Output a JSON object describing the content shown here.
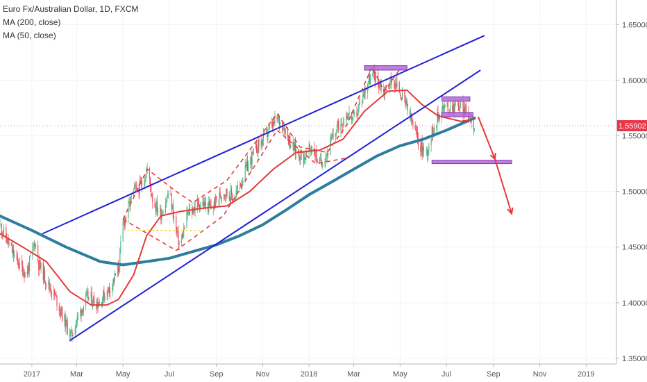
{
  "header": {
    "symbol_line": "Euro Fx/Australian Dollar, 1D, FXCM",
    "indicators": [
      "MA (200, close)",
      "MA (50, close)"
    ]
  },
  "colors": {
    "up": "#53b987",
    "down": "#eb4d5c",
    "ma200": "#2e7d9e",
    "ma50": "#e53935",
    "channel": "#1f1fd6",
    "zone_fill": "#b565d8",
    "zone_border": "#7b3fa8",
    "price_badge": "#e8374b",
    "dashed": "#e53935",
    "yellow": "#f5d742",
    "arrow": "#e53935"
  },
  "chart_data": {
    "type": "candlestick",
    "symbol": "EURAUD",
    "timeframe": "1D",
    "y_ticks": [
      "1.65000",
      "1.60000",
      "1.55000",
      "1.50000",
      "1.45000",
      "1.40000",
      "1.35000"
    ],
    "ylim": [
      1.345,
      1.672
    ],
    "x_ticks": [
      {
        "label": "2017",
        "date": "2017-01-01"
      },
      {
        "label": "Mar",
        "date": "2017-03-01"
      },
      {
        "label": "May",
        "date": "2017-05-01"
      },
      {
        "label": "Jul",
        "date": "2017-07-01"
      },
      {
        "label": "Sep",
        "date": "2017-09-01"
      },
      {
        "label": "Nov",
        "date": "2017-11-01"
      },
      {
        "label": "2018",
        "date": "2018-01-01"
      },
      {
        "label": "Mar",
        "date": "2018-03-01"
      },
      {
        "label": "May",
        "date": "2018-05-01"
      },
      {
        "label": "Jul",
        "date": "2018-07-01"
      },
      {
        "label": "Sep",
        "date": "2018-09-01"
      },
      {
        "label": "Nov",
        "date": "2018-11-01"
      },
      {
        "label": "2019",
        "date": "2019-01-01"
      }
    ],
    "xlim": [
      "2016-11-20",
      "2019-02-10"
    ],
    "last_price": 1.55902,
    "last_price_label": "1.55902",
    "price_path": [
      [
        "2016-11-20",
        1.47
      ],
      [
        "2016-12-10",
        1.44
      ],
      [
        "2016-12-25",
        1.425
      ],
      [
        "2017-01-05",
        1.455
      ],
      [
        "2017-01-10",
        1.435
      ],
      [
        "2017-01-20",
        1.42
      ],
      [
        "2017-02-01",
        1.405
      ],
      [
        "2017-02-15",
        1.38
      ],
      [
        "2017-02-22",
        1.37
      ],
      [
        "2017-03-01",
        1.385
      ],
      [
        "2017-03-15",
        1.405
      ],
      [
        "2017-03-30",
        1.4
      ],
      [
        "2017-04-15",
        1.415
      ],
      [
        "2017-04-25",
        1.43
      ],
      [
        "2017-05-01",
        1.47
      ],
      [
        "2017-05-15",
        1.5
      ],
      [
        "2017-05-25",
        1.505
      ],
      [
        "2017-06-02",
        1.52
      ],
      [
        "2017-06-10",
        1.49
      ],
      [
        "2017-06-20",
        1.48
      ],
      [
        "2017-07-01",
        1.5
      ],
      [
        "2017-07-10",
        1.465
      ],
      [
        "2017-07-15",
        1.45
      ],
      [
        "2017-07-25",
        1.48
      ],
      [
        "2017-08-10",
        1.49
      ],
      [
        "2017-08-25",
        1.485
      ],
      [
        "2017-09-10",
        1.5
      ],
      [
        "2017-09-25",
        1.495
      ],
      [
        "2017-10-10",
        1.52
      ],
      [
        "2017-10-25",
        1.54
      ],
      [
        "2017-11-05",
        1.55
      ],
      [
        "2017-11-20",
        1.565
      ],
      [
        "2017-11-28",
        1.56
      ],
      [
        "2017-12-10",
        1.54
      ],
      [
        "2017-12-25",
        1.53
      ],
      [
        "2018-01-05",
        1.54
      ],
      [
        "2018-01-15",
        1.525
      ],
      [
        "2018-01-25",
        1.535
      ],
      [
        "2018-02-05",
        1.555
      ],
      [
        "2018-02-20",
        1.57
      ],
      [
        "2018-03-01",
        1.565
      ],
      [
        "2018-03-10",
        1.58
      ],
      [
        "2018-03-20",
        1.6
      ],
      [
        "2018-03-28",
        1.605
      ],
      [
        "2018-04-10",
        1.59
      ],
      [
        "2018-04-20",
        1.6
      ],
      [
        "2018-05-01",
        1.59
      ],
      [
        "2018-05-10",
        1.575
      ],
      [
        "2018-05-20",
        1.555
      ],
      [
        "2018-05-28",
        1.54
      ],
      [
        "2018-06-05",
        1.535
      ],
      [
        "2018-06-15",
        1.56
      ],
      [
        "2018-06-25",
        1.575
      ],
      [
        "2018-07-05",
        1.575
      ],
      [
        "2018-07-15",
        1.578
      ],
      [
        "2018-07-25",
        1.573
      ],
      [
        "2018-08-01",
        1.568
      ],
      [
        "2018-08-07",
        1.559
      ]
    ],
    "ma200_path": [
      [
        "2016-11-20",
        1.478
      ],
      [
        "2017-01-01",
        1.465
      ],
      [
        "2017-02-15",
        1.45
      ],
      [
        "2017-04-01",
        1.437
      ],
      [
        "2017-05-01",
        1.434
      ],
      [
        "2017-06-01",
        1.437
      ],
      [
        "2017-07-01",
        1.44
      ],
      [
        "2017-08-01",
        1.446
      ],
      [
        "2017-09-01",
        1.452
      ],
      [
        "2017-10-01",
        1.46
      ],
      [
        "2017-11-01",
        1.47
      ],
      [
        "2017-12-01",
        1.483
      ],
      [
        "2018-01-01",
        1.497
      ],
      [
        "2018-02-01",
        1.509
      ],
      [
        "2018-03-01",
        1.52
      ],
      [
        "2018-04-01",
        1.532
      ],
      [
        "2018-05-01",
        1.541
      ],
      [
        "2018-06-01",
        1.547
      ],
      [
        "2018-07-01",
        1.555
      ],
      [
        "2018-08-07",
        1.566
      ]
    ],
    "ma50_path": [
      [
        "2016-11-20",
        1.462
      ],
      [
        "2016-12-20",
        1.45
      ],
      [
        "2017-01-20",
        1.437
      ],
      [
        "2017-02-20",
        1.41
      ],
      [
        "2017-03-20",
        1.398
      ],
      [
        "2017-04-10",
        1.398
      ],
      [
        "2017-04-25",
        1.403
      ],
      [
        "2017-05-15",
        1.425
      ],
      [
        "2017-06-01",
        1.46
      ],
      [
        "2017-06-20",
        1.478
      ],
      [
        "2017-07-15",
        1.482
      ],
      [
        "2017-08-15",
        1.485
      ],
      [
        "2017-09-15",
        1.487
      ],
      [
        "2017-10-15",
        1.5
      ],
      [
        "2017-11-15",
        1.52
      ],
      [
        "2017-12-15",
        1.535
      ],
      [
        "2018-01-15",
        1.537
      ],
      [
        "2018-02-15",
        1.547
      ],
      [
        "2018-03-15",
        1.572
      ],
      [
        "2018-04-15",
        1.59
      ],
      [
        "2018-05-10",
        1.591
      ],
      [
        "2018-05-30",
        1.578
      ],
      [
        "2018-06-20",
        1.568
      ],
      [
        "2018-07-20",
        1.563
      ],
      [
        "2018-08-07",
        1.565
      ]
    ],
    "channel_upper": [
      [
        "2017-01-15",
        1.462
      ],
      [
        "2018-08-20",
        1.64
      ]
    ],
    "channel_lower": [
      [
        "2017-02-20",
        1.366
      ],
      [
        "2018-08-15",
        1.609
      ]
    ],
    "dashed_zigzag": [
      [
        "2017-05-01",
        1.475
      ],
      [
        "2017-06-02",
        1.52
      ],
      [
        "2017-07-10",
        1.5
      ],
      [
        "2017-08-01",
        1.49
      ],
      [
        "2017-09-15",
        1.51
      ],
      [
        "2017-11-20",
        1.57
      ],
      [
        "2017-12-20",
        1.54
      ],
      [
        "2018-01-25",
        1.535
      ],
      [
        "2018-02-20",
        1.56
      ],
      [
        "2018-03-25",
        1.612
      ],
      [
        "2018-04-10",
        1.59
      ],
      [
        "2018-05-01",
        1.61
      ]
    ],
    "dashed_lower": [
      [
        "2017-05-01",
        1.475
      ],
      [
        "2017-07-10",
        1.447
      ],
      [
        "2017-09-10",
        1.478
      ],
      [
        "2017-11-20",
        1.555
      ],
      [
        "2018-01-10",
        1.525
      ],
      [
        "2018-02-20",
        1.53
      ]
    ],
    "yellow_level": {
      "from": "2017-05-01",
      "to": "2017-08-15",
      "value": 1.465
    },
    "zones": [
      {
        "from": "2018-03-15",
        "to": "2018-05-10",
        "low": 1.609,
        "high": 1.613
      },
      {
        "from": "2018-06-25",
        "to": "2018-08-01",
        "low": 1.581,
        "high": 1.585
      },
      {
        "from": "2018-06-25",
        "to": "2018-08-05",
        "low": 1.567,
        "high": 1.571
      },
      {
        "from": "2018-06-12",
        "to": "2018-09-25",
        "low": 1.525,
        "high": 1.528
      }
    ],
    "projection_arrow": [
      [
        "2018-08-12",
        1.567
      ],
      [
        "2018-09-03",
        1.529
      ],
      [
        "2018-09-25",
        1.48
      ]
    ]
  }
}
